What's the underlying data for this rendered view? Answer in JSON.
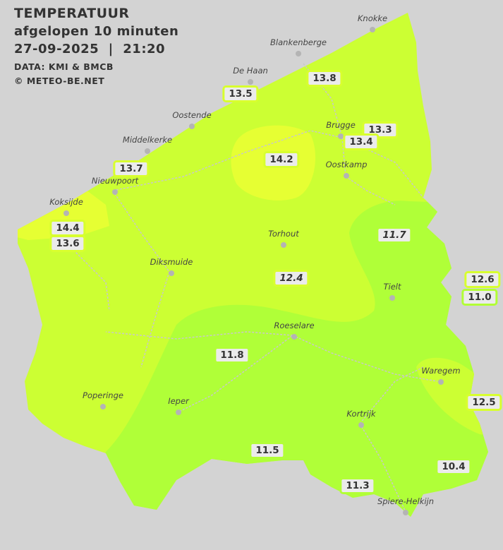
{
  "header": {
    "title": "TEMPERATUUR",
    "subtitle": "afgelopen 10 minuten",
    "datetime": "27-09-2025  |  21:20",
    "source": "DATA: KMI & BMCB",
    "copyright": "© METEO-BE.NET"
  },
  "colors": {
    "background": "#d3d3d3",
    "zone_12_14": "#ccff33",
    "zone_14_plus": "#e6ff33",
    "zone_10_12": "#b0ff38",
    "roads": "#c8c8c8"
  },
  "cities": [
    {
      "name": "Knokke"
    },
    {
      "name": "Blankenberge"
    },
    {
      "name": "De Haan"
    },
    {
      "name": "Oostende"
    },
    {
      "name": "Middelkerke"
    },
    {
      "name": "Brugge"
    },
    {
      "name": "Oostkamp"
    },
    {
      "name": "Nieuwpoort"
    },
    {
      "name": "Koksijde"
    },
    {
      "name": "Torhout"
    },
    {
      "name": "Diksmuide"
    },
    {
      "name": "Tielt"
    },
    {
      "name": "Roeselare"
    },
    {
      "name": "Waregem"
    },
    {
      "name": "Poperinge"
    },
    {
      "name": "Ieper"
    },
    {
      "name": "Kortrijk"
    },
    {
      "name": "Spiere-Helkijn"
    }
  ],
  "stations": [
    {
      "value": "13.8"
    },
    {
      "value": "13.5"
    },
    {
      "value": "13.3"
    },
    {
      "value": "13.4"
    },
    {
      "value": "14.2"
    },
    {
      "value": "13.7"
    },
    {
      "value": "14.4"
    },
    {
      "value": "13.6"
    },
    {
      "value": "11.7",
      "italic": true
    },
    {
      "value": "12.4",
      "italic": true
    },
    {
      "value": "12.6"
    },
    {
      "value": "11.0"
    },
    {
      "value": "11.8"
    },
    {
      "value": "12.5"
    },
    {
      "value": "11.5"
    },
    {
      "value": "10.4"
    },
    {
      "value": "11.3"
    }
  ]
}
